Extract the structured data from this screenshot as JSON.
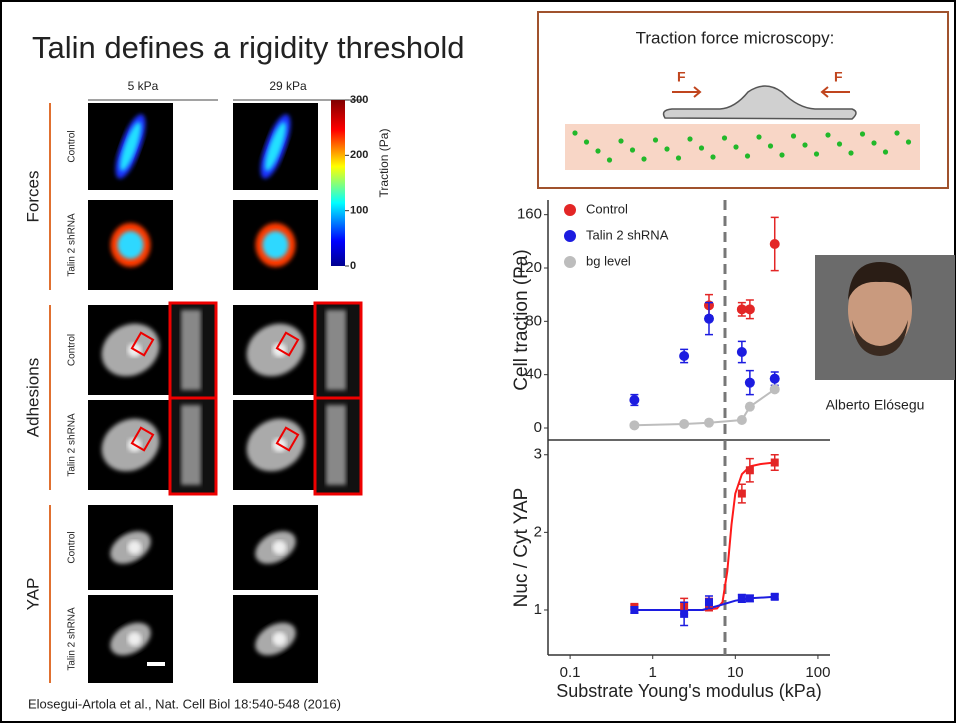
{
  "title": "Talin defines a rigidity threshold",
  "citation": "Elosegui-Artola et al.,  Nat. Cell Biol 18:540-548 (2016)",
  "figure": {
    "columns": [
      "5 kPa",
      "29 kPa"
    ],
    "groups": [
      "Forces",
      "Adhesions",
      "YAP"
    ],
    "row_labels": [
      "Control",
      "Talin 2 shRNA"
    ],
    "colorbar": {
      "label": "Traction (Pa)",
      "lim": [
        0,
        300
      ],
      "ticks": [
        0,
        100,
        200,
        300
      ]
    }
  },
  "inset": {
    "title": "Traction force microscopy:",
    "force_label": "F"
  },
  "photo_caption": "Alberto Elósegu",
  "chart_data": [
    {
      "type": "scatter",
      "y_label": "Cell traction (Pa)",
      "xscale": "log",
      "x": [
        0.6,
        2.4,
        4.8,
        12,
        15,
        30
      ],
      "xlim": [
        0.054,
        140
      ],
      "ylim": [
        -9,
        171
      ],
      "yticks": [
        0,
        40,
        80,
        120,
        160
      ],
      "vline": 7.5,
      "series": [
        {
          "name": "Control",
          "color": "#e32626",
          "values": [
            null,
            null,
            92,
            89,
            89,
            138
          ],
          "errors": [
            null,
            null,
            8,
            5,
            7,
            20
          ]
        },
        {
          "name": "Talin 2 shRNA",
          "color": "#1c1ce0",
          "values": [
            21,
            54,
            82,
            57,
            34,
            37
          ],
          "errors": [
            4,
            5,
            12,
            8,
            9,
            5
          ]
        },
        {
          "name": "bg level",
          "color": "#bdbdbd",
          "values": [
            2,
            3,
            4,
            6,
            16,
            29
          ],
          "line": true
        }
      ]
    },
    {
      "type": "scatter",
      "y_label": "Nuc / Cyt YAP",
      "x_label": "Substrate Young's modulus (kPa)",
      "xscale": "log",
      "x": [
        0.6,
        2.4,
        4.8,
        12,
        15,
        30
      ],
      "xlim": [
        0.054,
        140
      ],
      "ylim": [
        0.42,
        3.19
      ],
      "xticks": [
        0.1,
        1,
        10,
        100
      ],
      "yticks": [
        1,
        2,
        3
      ],
      "vline": 7.5,
      "marker": "square",
      "series": [
        {
          "color": "#e32626",
          "values": [
            1.04,
            1.05,
            1.07,
            2.5,
            2.8,
            2.9
          ],
          "errors": [
            0.03,
            0.1,
            0.08,
            0.12,
            0.15,
            0.1
          ]
        },
        {
          "color": "#1c1ce0",
          "values": [
            1.0,
            0.95,
            1.1,
            1.15,
            1.15,
            1.17
          ],
          "errors": [
            0.04,
            0.15,
            0.08,
            0.05,
            0.04,
            0.03
          ]
        }
      ],
      "fits": [
        {
          "color": "#ff1a1a",
          "x": [
            0.6,
            2,
            4,
            6,
            7,
            8,
            9,
            10,
            12,
            15,
            20,
            30
          ],
          "values": [
            1,
            1,
            1,
            1.02,
            1.1,
            1.5,
            2.1,
            2.5,
            2.75,
            2.85,
            2.88,
            2.9
          ]
        },
        {
          "color": "#1c1ce0",
          "x": [
            0.6,
            2,
            4,
            6,
            10,
            15,
            30
          ],
          "values": [
            1,
            1,
            1,
            1.05,
            1.12,
            1.15,
            1.17
          ]
        }
      ]
    }
  ]
}
